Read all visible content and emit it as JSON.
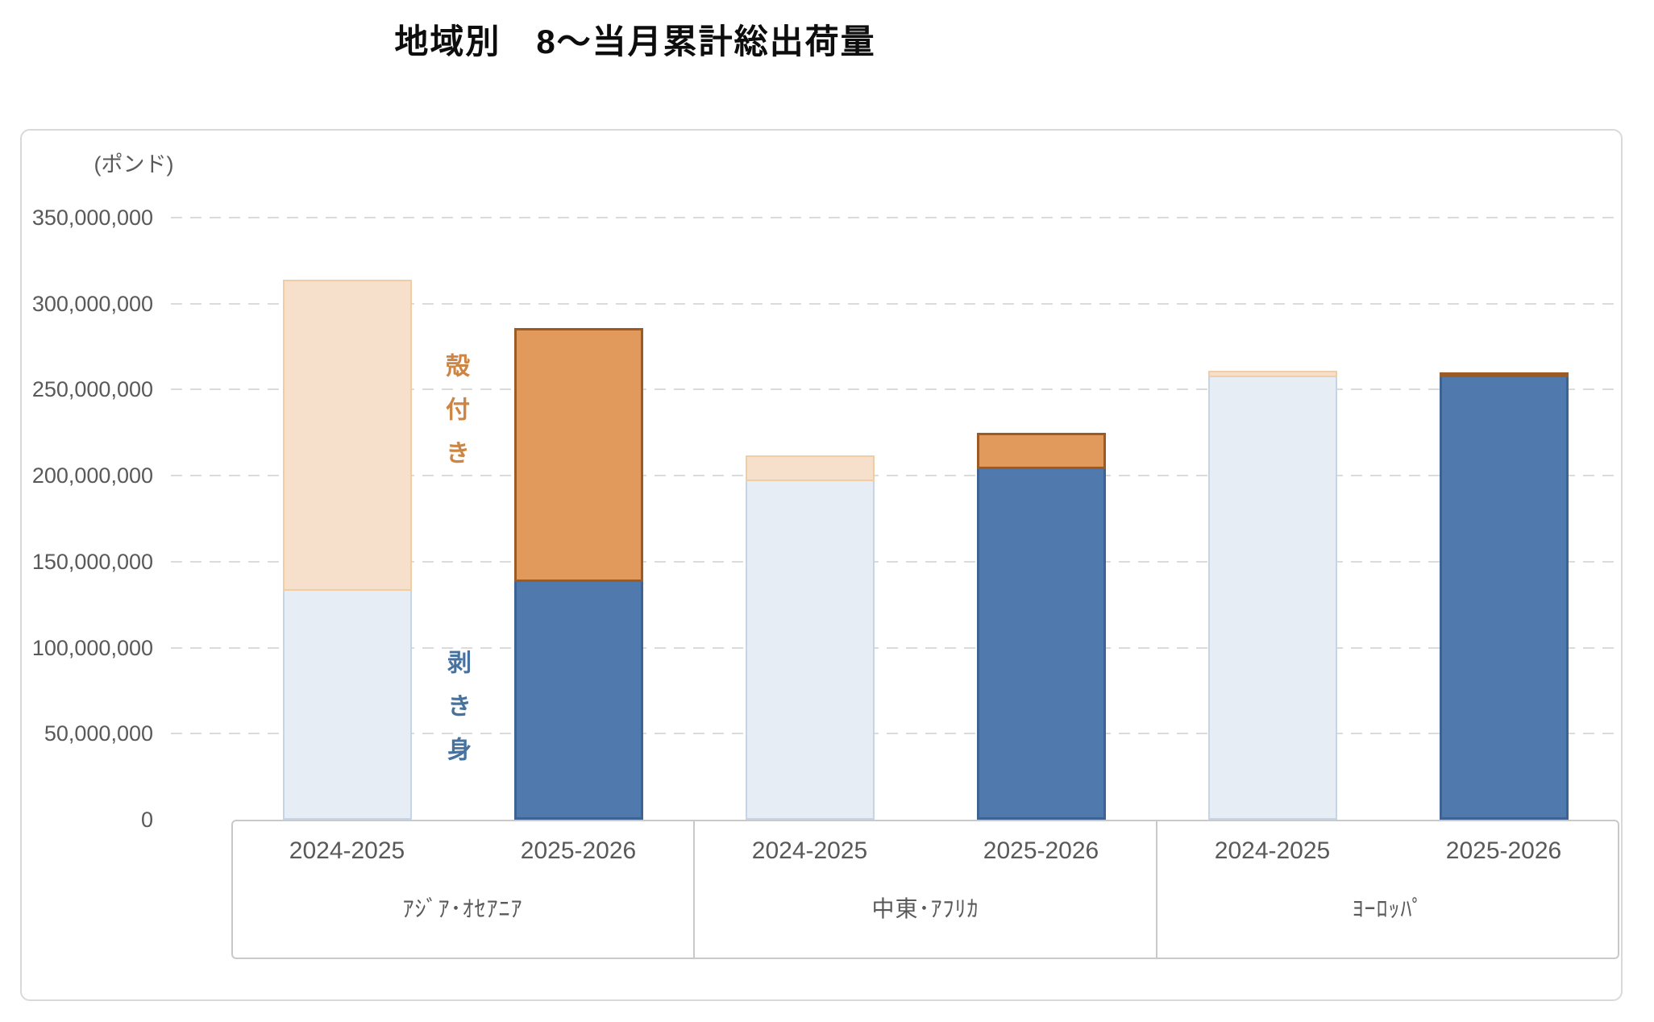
{
  "title": "地域別　8～当月累計総出荷量",
  "y_axis": {
    "unit_label": "(ポンド)",
    "tick_labels": [
      "350,000,000",
      "300,000,000",
      "250,000,000",
      "200,000,000",
      "150,000,000",
      "100,000,000",
      "50,000,000",
      "0"
    ]
  },
  "series_labels": {
    "in_shell": "殻付き",
    "shelled": "剥き身"
  },
  "chart_data": {
    "type": "bar",
    "stacked": true,
    "title": "地域別　8～当月累計総出荷量",
    "value_unit": "ポンド",
    "ylim": [
      0,
      350000000
    ],
    "gridline_step": 50000000,
    "grid": "dashed horizontal",
    "legend_position": "none (segments labeled by in-chart vertical text: 殻付き = top/orange segment, 剥き身 = bottom/blue segment)",
    "groups": [
      {
        "label": "ｱｼﾞｱ･ｵｾｱﾆｱ",
        "slug": "asia-oceania"
      },
      {
        "label": "中東･ｱﾌﾘｶ",
        "slug": "middle-east-africa"
      },
      {
        "label": "ﾖｰﾛｯﾊﾟ",
        "slug": "europe"
      }
    ],
    "years": [
      "2024-2025",
      "2025-2026"
    ],
    "bars": [
      {
        "group": 0,
        "year": "2024-2025",
        "shelled": 133000000,
        "in_shell": 181000000,
        "total": 314000000
      },
      {
        "group": 0,
        "year": "2025-2026",
        "shelled": 138000000,
        "in_shell": 148000000,
        "total": 286000000
      },
      {
        "group": 1,
        "year": "2024-2025",
        "shelled": 197000000,
        "in_shell": 15000000,
        "total": 212000000
      },
      {
        "group": 1,
        "year": "2025-2026",
        "shelled": 204000000,
        "in_shell": 21000000,
        "total": 225000000
      },
      {
        "group": 2,
        "year": "2024-2025",
        "shelled": 257000000,
        "in_shell": 4000000,
        "total": 261000000
      },
      {
        "group": 2,
        "year": "2025-2026",
        "shelled": 257000000,
        "in_shell": 3000000,
        "total": 260000000
      }
    ]
  },
  "colors": {
    "year_2024_2025": {
      "shelled_fill": "#E7EDF4",
      "shelled_border": "#C5D5E6",
      "in_shell_fill": "#F7E0CB",
      "in_shell_border": "#EFCDA6"
    },
    "year_2025_2026": {
      "shelled_fill": "#5079AD",
      "shelled_border": "#3D6394",
      "in_shell_fill": "#E2995C",
      "in_shell_border": "#9C5B24"
    },
    "in_shell_label": "#CE8442",
    "shelled_label": "#47729F",
    "axis_text": "#595959",
    "gridline": "#DBDBDB",
    "frame_border": "#C9C9C9",
    "title_color": "#0D0D0D"
  }
}
